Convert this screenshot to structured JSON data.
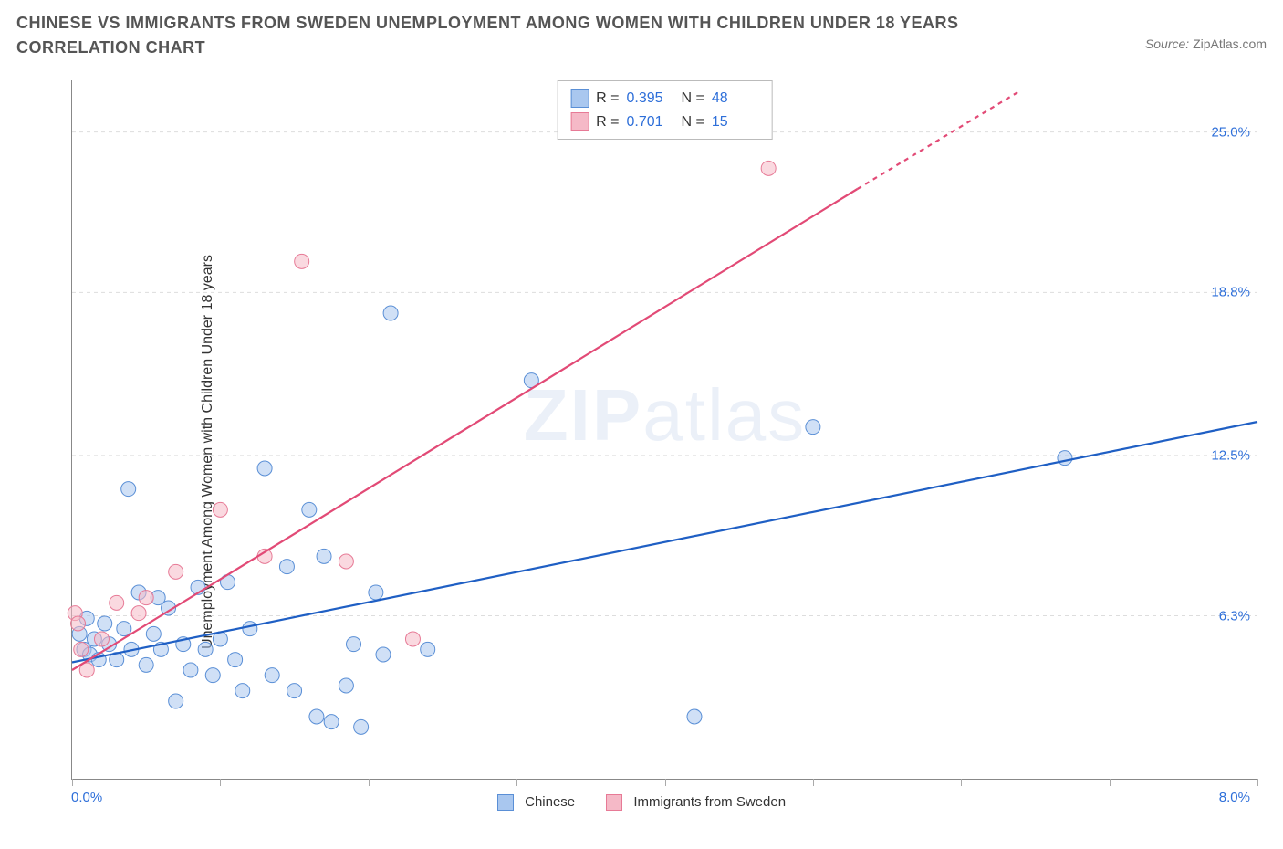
{
  "title": "CHINESE VS IMMIGRANTS FROM SWEDEN UNEMPLOYMENT AMONG WOMEN WITH CHILDREN UNDER 18 YEARS CORRELATION CHART",
  "source_label": "Source:",
  "source_name": "ZipAtlas.com",
  "watermark_bold": "ZIP",
  "watermark_thin": "atlas",
  "y_axis_label": "Unemployment Among Women with Children Under 18 years",
  "chart": {
    "type": "scatter",
    "xlim": [
      0.0,
      8.0
    ],
    "ylim": [
      0.0,
      27.0
    ],
    "x_ticks_minor": [
      0.0,
      1.0,
      2.0,
      3.0,
      4.0,
      5.0,
      6.0,
      7.0,
      8.0
    ],
    "x_tick_labels": {
      "left": "0.0%",
      "right": "8.0%"
    },
    "y_grid": [
      6.3,
      12.5,
      18.8,
      25.0
    ],
    "y_tick_labels": [
      "6.3%",
      "12.5%",
      "18.8%",
      "25.0%"
    ],
    "background_color": "#ffffff",
    "grid_color": "#dddddd",
    "axis_color": "#888888",
    "tick_label_color": "#2e6fd9",
    "marker_radius": 8,
    "marker_opacity": 0.55,
    "line_width": 2.2,
    "series": [
      {
        "name": "Chinese",
        "fill": "#a9c7ef",
        "stroke": "#5a8fd6",
        "line_color": "#1f5fc4",
        "R": "0.395",
        "N": "48",
        "trend": {
          "x1": 0.0,
          "y1": 4.5,
          "x2": 8.0,
          "y2": 13.8
        },
        "points": [
          [
            0.05,
            5.6
          ],
          [
            0.08,
            5.0
          ],
          [
            0.1,
            6.2
          ],
          [
            0.12,
            4.8
          ],
          [
            0.15,
            5.4
          ],
          [
            0.18,
            4.6
          ],
          [
            0.22,
            6.0
          ],
          [
            0.25,
            5.2
          ],
          [
            0.3,
            4.6
          ],
          [
            0.35,
            5.8
          ],
          [
            0.38,
            11.2
          ],
          [
            0.4,
            5.0
          ],
          [
            0.45,
            7.2
          ],
          [
            0.5,
            4.4
          ],
          [
            0.55,
            5.6
          ],
          [
            0.58,
            7.0
          ],
          [
            0.6,
            5.0
          ],
          [
            0.65,
            6.6
          ],
          [
            0.7,
            3.0
          ],
          [
            0.75,
            5.2
          ],
          [
            0.8,
            4.2
          ],
          [
            0.85,
            7.4
          ],
          [
            0.9,
            5.0
          ],
          [
            0.95,
            4.0
          ],
          [
            1.0,
            5.4
          ],
          [
            1.05,
            7.6
          ],
          [
            1.1,
            4.6
          ],
          [
            1.15,
            3.4
          ],
          [
            1.2,
            5.8
          ],
          [
            1.3,
            12.0
          ],
          [
            1.35,
            4.0
          ],
          [
            1.45,
            8.2
          ],
          [
            1.5,
            3.4
          ],
          [
            1.6,
            10.4
          ],
          [
            1.65,
            2.4
          ],
          [
            1.7,
            8.6
          ],
          [
            1.75,
            2.2
          ],
          [
            1.85,
            3.6
          ],
          [
            1.9,
            5.2
          ],
          [
            1.95,
            2.0
          ],
          [
            2.05,
            7.2
          ],
          [
            2.1,
            4.8
          ],
          [
            2.15,
            18.0
          ],
          [
            2.4,
            5.0
          ],
          [
            3.1,
            15.4
          ],
          [
            4.2,
            2.4
          ],
          [
            5.0,
            13.6
          ],
          [
            6.7,
            12.4
          ]
        ]
      },
      {
        "name": "Immigrants from Sweden",
        "fill": "#f5b9c7",
        "stroke": "#e77a96",
        "line_color": "#e24a76",
        "R": "0.701",
        "N": "15",
        "trend": {
          "x1": 0.0,
          "y1": 4.2,
          "x2": 5.3,
          "y2": 22.8
        },
        "trend_dashed_to": {
          "x2": 6.4,
          "y2": 26.6
        },
        "points": [
          [
            0.02,
            6.4
          ],
          [
            0.04,
            6.0
          ],
          [
            0.06,
            5.0
          ],
          [
            0.1,
            4.2
          ],
          [
            0.2,
            5.4
          ],
          [
            0.3,
            6.8
          ],
          [
            0.45,
            6.4
          ],
          [
            0.5,
            7.0
          ],
          [
            0.7,
            8.0
          ],
          [
            1.0,
            10.4
          ],
          [
            1.3,
            8.6
          ],
          [
            1.55,
            20.0
          ],
          [
            1.85,
            8.4
          ],
          [
            2.3,
            5.4
          ],
          [
            4.7,
            23.6
          ]
        ]
      }
    ],
    "corr_legend": {
      "border_color": "#bbbbbb",
      "label_R": "R =",
      "label_N": "N ="
    },
    "bottom_legend_labels": [
      "Chinese",
      "Immigrants from Sweden"
    ]
  }
}
